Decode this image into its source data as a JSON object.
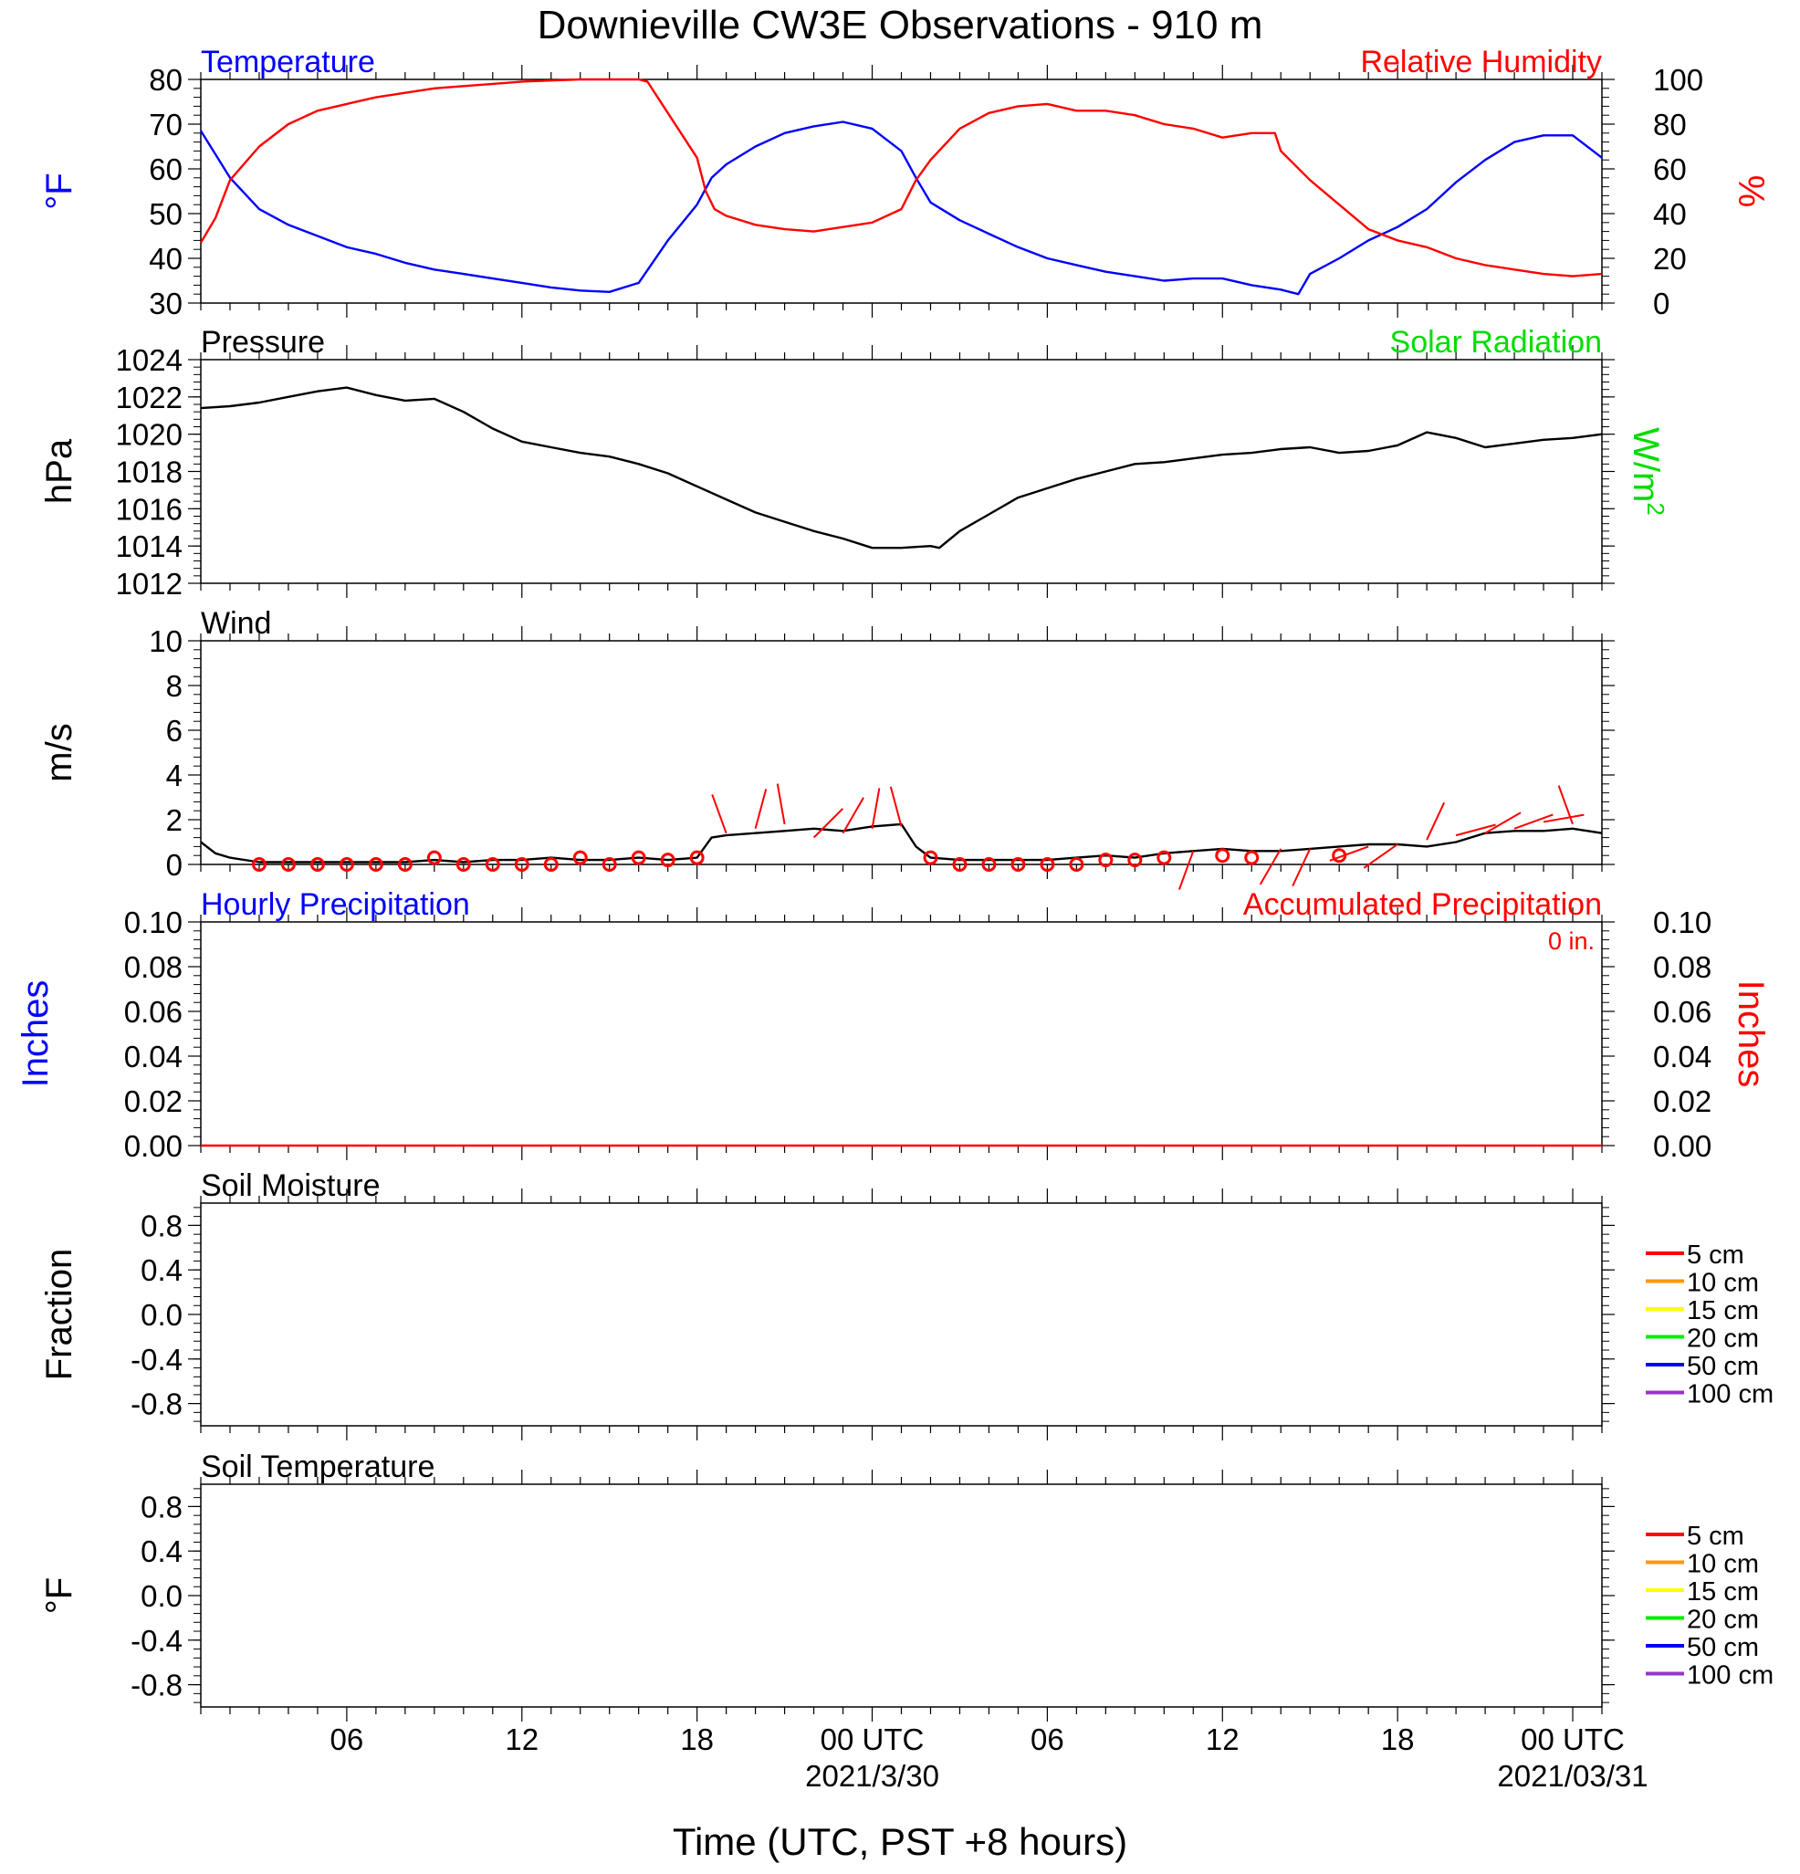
{
  "title": "Downieville CW3E Observations - 910 m",
  "xlabel": "Time (UTC, PST +8 hours)",
  "x_ticks": [
    {
      "hour": 6,
      "label": "06"
    },
    {
      "hour": 12,
      "label": "12"
    },
    {
      "hour": 18,
      "label": "18"
    },
    {
      "hour": 24,
      "label": "00 UTC",
      "sublabel": "2021/3/30"
    },
    {
      "hour": 30,
      "label": "06"
    },
    {
      "hour": 36,
      "label": "12"
    },
    {
      "hour": 42,
      "label": "18"
    },
    {
      "hour": 48,
      "label": "00 UTC",
      "sublabel": "2021/03/31"
    }
  ],
  "x_range_hours": [
    1,
    49
  ],
  "colors": {
    "temperature": "#0000ff",
    "humidity": "#ff0000",
    "pressure": "#000000",
    "solar": "#00dd00",
    "wind": "#000000",
    "wind_barb": "#ff0000",
    "hourly_precip": "#0000ff",
    "accum_precip": "#ff0000"
  },
  "chart_data": [
    {
      "type": "line",
      "panel": "temperature-humidity",
      "left_title": "Temperature",
      "right_title": "Relative Humidity",
      "ylabel_left": "°F",
      "ylabel_right": "%",
      "ylim_left": [
        30,
        80
      ],
      "ylim_right": [
        0,
        100
      ],
      "yticks_left": [
        "30",
        "40",
        "50",
        "60",
        "70",
        "80"
      ],
      "yticks_right": [
        "0",
        "20",
        "40",
        "60",
        "80",
        "100"
      ],
      "series": [
        {
          "key": "temperature",
          "axis": "left",
          "x": [
            1,
            2,
            3,
            4,
            5,
            6,
            7,
            8,
            9,
            10,
            11,
            12,
            13,
            14,
            15,
            16,
            17,
            18,
            18.5,
            19,
            20,
            21,
            22,
            23,
            24,
            25,
            25.5,
            26,
            27,
            28,
            29,
            30,
            31,
            32,
            33,
            34,
            35,
            36,
            37,
            38,
            38.6,
            39,
            40,
            41,
            42,
            43,
            44,
            45,
            46,
            47,
            48,
            49
          ],
          "y": [
            68.5,
            58,
            51,
            47.5,
            45,
            42.5,
            41,
            39,
            37.5,
            36.5,
            35.5,
            34.5,
            33.5,
            32.8,
            32.5,
            34.5,
            44,
            52,
            58,
            61,
            65,
            68,
            69.5,
            70.5,
            69,
            64,
            58,
            52.5,
            48.5,
            45.5,
            42.5,
            40,
            38.5,
            37,
            36,
            35,
            35.5,
            35.5,
            34,
            33,
            32,
            36.5,
            40,
            44,
            47,
            51,
            57,
            62,
            66,
            67.5,
            67.5,
            62.5
          ]
        },
        {
          "key": "humidity",
          "axis": "right",
          "x": [
            1,
            1.5,
            2,
            3,
            4,
            5,
            6,
            7,
            8,
            9,
            10,
            11,
            12,
            13,
            14,
            15,
            16,
            16.3,
            17,
            18,
            18.3,
            18.6,
            19,
            20,
            21,
            22,
            23,
            24,
            25,
            25.5,
            26,
            27,
            28,
            29,
            30,
            31,
            32,
            33,
            34,
            35,
            36,
            37,
            37.8,
            38,
            39,
            40,
            41,
            42,
            43,
            44,
            45,
            46,
            47,
            48,
            49
          ],
          "y": [
            27,
            38,
            55,
            70,
            80,
            86,
            89,
            92,
            94,
            96,
            97,
            98,
            99,
            99.5,
            100,
            100,
            100,
            99,
            85,
            65,
            50,
            42,
            39,
            35,
            33,
            32,
            34,
            36,
            42,
            55,
            64,
            78,
            85,
            88,
            89,
            86,
            86,
            84,
            80,
            78,
            74,
            76,
            76,
            68,
            55,
            44,
            33,
            28,
            25,
            20,
            17,
            15,
            13,
            12,
            13
          ]
        }
      ]
    },
    {
      "type": "line",
      "panel": "pressure",
      "left_title": "Pressure",
      "right_title": "Solar Radiation",
      "ylabel_left": "hPa",
      "ylabel_right": "W/m",
      "ylabel_right_sup": "2",
      "ylim_left": [
        1012,
        1024
      ],
      "yticks_left": [
        "1012",
        "1014",
        "1016",
        "1018",
        "1020",
        "1022",
        "1024"
      ],
      "series": [
        {
          "key": "pressure",
          "axis": "left",
          "x": [
            1,
            2,
            3,
            4,
            5,
            6,
            7,
            8,
            9,
            10,
            11,
            12,
            13,
            14,
            15,
            16,
            17,
            18,
            19,
            20,
            21,
            22,
            23,
            24,
            25,
            26,
            26.3,
            27,
            28,
            29,
            30,
            31,
            32,
            33,
            34,
            35,
            36,
            37,
            38,
            39,
            40,
            41,
            42,
            43,
            44,
            45,
            46,
            47,
            48,
            49
          ],
          "y": [
            1021.4,
            1021.5,
            1021.7,
            1022.0,
            1022.3,
            1022.5,
            1022.1,
            1021.8,
            1021.9,
            1021.2,
            1020.3,
            1019.6,
            1019.3,
            1019.0,
            1018.8,
            1018.4,
            1017.9,
            1017.2,
            1016.5,
            1015.8,
            1015.3,
            1014.8,
            1014.4,
            1013.9,
            1013.9,
            1014.0,
            1013.9,
            1014.8,
            1015.7,
            1016.6,
            1017.1,
            1017.6,
            1018.0,
            1018.4,
            1018.5,
            1018.7,
            1018.9,
            1019.0,
            1019.2,
            1019.3,
            1019.0,
            1019.1,
            1019.4,
            1020.1,
            1019.8,
            1019.3,
            1019.5,
            1019.7,
            1019.8,
            1020.0
          ]
        }
      ]
    },
    {
      "type": "line",
      "panel": "wind",
      "left_title": "Wind",
      "ylabel_left": "m/s",
      "ylim_left": [
        0,
        10
      ],
      "yticks_left": [
        "0",
        "2",
        "4",
        "6",
        "8",
        "10"
      ],
      "series": [
        {
          "key": "wind",
          "axis": "left",
          "x": [
            1,
            1.5,
            2,
            3,
            4,
            5,
            6,
            7,
            8,
            9,
            10,
            11,
            12,
            13,
            14,
            15,
            16,
            17,
            18,
            18.5,
            19,
            20,
            21,
            22,
            23,
            24,
            25,
            25.5,
            26,
            27,
            28,
            29,
            30,
            31,
            32,
            33,
            34,
            35,
            36,
            37,
            38,
            39,
            40,
            41,
            42,
            43,
            44,
            45,
            46,
            47,
            48,
            49
          ],
          "y": [
            1.0,
            0.5,
            0.3,
            0.1,
            0.1,
            0.1,
            0.1,
            0.1,
            0.1,
            0.2,
            0.1,
            0.2,
            0.2,
            0.3,
            0.2,
            0.2,
            0.3,
            0.2,
            0.3,
            1.2,
            1.3,
            1.4,
            1.5,
            1.6,
            1.5,
            1.7,
            1.8,
            0.8,
            0.3,
            0.2,
            0.2,
            0.2,
            0.2,
            0.3,
            0.4,
            0.3,
            0.5,
            0.6,
            0.7,
            0.6,
            0.6,
            0.7,
            0.8,
            0.9,
            0.9,
            0.8,
            1.0,
            1.4,
            1.5,
            1.5,
            1.6,
            1.4
          ]
        }
      ]
    },
    {
      "type": "line",
      "panel": "precipitation",
      "left_title": "Hourly Precipitation",
      "right_title": "Accumulated Precipitation",
      "annotation": "0 in.",
      "ylabel_left": "Inches",
      "ylabel_right": "Inches",
      "ylim_left": [
        0,
        0.1
      ],
      "ylim_right": [
        0,
        0.1
      ],
      "yticks_left": [
        "0.00",
        "0.02",
        "0.04",
        "0.06",
        "0.08",
        "0.10"
      ],
      "yticks_right": [
        "0.00",
        "0.02",
        "0.04",
        "0.06",
        "0.08",
        "0.10"
      ],
      "series": [
        {
          "key": "accum_precip",
          "axis": "right",
          "x": [
            1,
            49
          ],
          "y": [
            0,
            0
          ]
        }
      ]
    },
    {
      "type": "line",
      "panel": "soil-moisture",
      "left_title": "Soil Moisture",
      "ylabel_left": "Fraction",
      "ylim_left": [
        -1,
        1
      ],
      "yticks_left": [
        "-0.8",
        "-0.4",
        "0.0",
        "0.4",
        "0.8"
      ],
      "legend": [
        {
          "name": "5 cm",
          "color": "#ff0000"
        },
        {
          "name": "10 cm",
          "color": "#ff9900"
        },
        {
          "name": "15 cm",
          "color": "#ffff00"
        },
        {
          "name": "20 cm",
          "color": "#00ee00"
        },
        {
          "name": "50 cm",
          "color": "#0000ff"
        },
        {
          "name": "100 cm",
          "color": "#9933cc"
        }
      ],
      "series": []
    },
    {
      "type": "line",
      "panel": "soil-temperature",
      "left_title": "Soil Temperature",
      "ylabel_left": "°F",
      "ylim_left": [
        -1,
        1
      ],
      "yticks_left": [
        "-0.8",
        "-0.4",
        "0.0",
        "0.4",
        "0.8"
      ],
      "legend": [
        {
          "name": "5 cm",
          "color": "#ff0000"
        },
        {
          "name": "10 cm",
          "color": "#ff9900"
        },
        {
          "name": "15 cm",
          "color": "#ffff00"
        },
        {
          "name": "20 cm",
          "color": "#00ee00"
        },
        {
          "name": "50 cm",
          "color": "#0000ff"
        },
        {
          "name": "100 cm",
          "color": "#9933cc"
        }
      ],
      "series": []
    }
  ],
  "wind_barbs": [
    {
      "hour": 3,
      "speed": 0.0
    },
    {
      "hour": 4,
      "speed": 0.0
    },
    {
      "hour": 5,
      "speed": 0.0
    },
    {
      "hour": 6,
      "speed": 0.0
    },
    {
      "hour": 7,
      "speed": 0.0
    },
    {
      "hour": 8,
      "speed": 0.0
    },
    {
      "hour": 9,
      "speed": 0.3
    },
    {
      "hour": 10,
      "speed": 0.0
    },
    {
      "hour": 11,
      "speed": 0.0
    },
    {
      "hour": 12,
      "speed": 0.0
    },
    {
      "hour": 13,
      "speed": 0.0
    },
    {
      "hour": 14,
      "speed": 0.3
    },
    {
      "hour": 15,
      "speed": 0.0
    },
    {
      "hour": 16,
      "speed": 0.3
    },
    {
      "hour": 17,
      "speed": 0.2
    },
    {
      "hour": 18,
      "speed": 0.3
    },
    {
      "hour": 19,
      "speed": 1.4,
      "dir": 340
    },
    {
      "hour": 20,
      "speed": 1.6,
      "dir": 15
    },
    {
      "hour": 21,
      "speed": 1.8,
      "dir": 350
    },
    {
      "hour": 22,
      "speed": 1.2,
      "dir": 45
    },
    {
      "hour": 23,
      "speed": 1.4,
      "dir": 30
    },
    {
      "hour": 24,
      "speed": 1.6,
      "dir": 10
    },
    {
      "hour": 25,
      "speed": 1.7,
      "dir": 345
    },
    {
      "hour": 26,
      "speed": 0.3
    },
    {
      "hour": 27,
      "speed": 0.0
    },
    {
      "hour": 28,
      "speed": 0.0
    },
    {
      "hour": 29,
      "speed": 0.0
    },
    {
      "hour": 30,
      "speed": 0.0
    },
    {
      "hour": 31,
      "speed": 0.0
    },
    {
      "hour": 32,
      "speed": 0.2
    },
    {
      "hour": 33,
      "speed": 0.2
    },
    {
      "hour": 34,
      "speed": 0.3
    },
    {
      "hour": 35,
      "speed": 0.6,
      "dir": 200
    },
    {
      "hour": 36,
      "speed": 0.4
    },
    {
      "hour": 37,
      "speed": 0.3
    },
    {
      "hour": 38,
      "speed": 0.7,
      "dir": 210
    },
    {
      "hour": 39,
      "speed": 0.7,
      "dir": 205
    },
    {
      "hour": 40,
      "speed": 0.4
    },
    {
      "hour": 41,
      "speed": 0.8,
      "dir": 250
    },
    {
      "hour": 42,
      "speed": 0.9,
      "dir": 235
    },
    {
      "hour": 43,
      "speed": 1.1,
      "dir": 25
    },
    {
      "hour": 44,
      "speed": 1.3,
      "dir": 75
    },
    {
      "hour": 45,
      "speed": 1.4,
      "dir": 60
    },
    {
      "hour": 46,
      "speed": 1.6,
      "dir": 70
    },
    {
      "hour": 47,
      "speed": 1.9,
      "dir": 80
    },
    {
      "hour": 48,
      "speed": 1.8,
      "dir": 340
    }
  ]
}
